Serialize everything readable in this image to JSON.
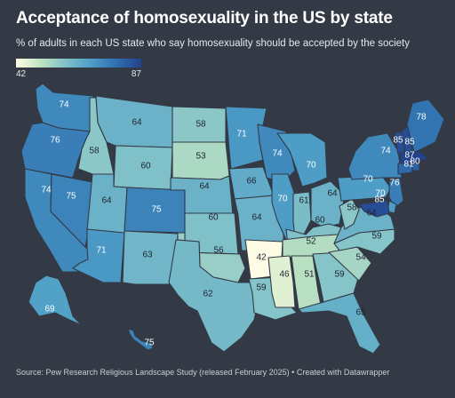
{
  "title": "Acceptance of homosexuality in the US by state",
  "subtitle": "% of adults in each US state who say homosexuality should be accepted by the society",
  "legend": {
    "min": "42",
    "max": "87"
  },
  "source": "Source: Pew Research Religious Landscape Study (released February 2025) • Created with Datawrapper",
  "colors": {
    "low": "#fefce4",
    "high": "#23428c",
    "background": "#333a46"
  },
  "states": {
    "WA": 74,
    "OR": 76,
    "CA": 74,
    "NV": 75,
    "ID": 58,
    "MT": 64,
    "WY": 60,
    "UT": 64,
    "AZ": 71,
    "CO": 75,
    "NM": 63,
    "ND": 58,
    "SD": 53,
    "NE": 64,
    "KS": 60,
    "OK": 56,
    "TX": 62,
    "MN": 71,
    "IA": 66,
    "MO": 64,
    "AR": 42,
    "LA": 59,
    "WI": 74,
    "IL": 70,
    "MI": 70,
    "IN": 61,
    "OH": 64,
    "KY": 60,
    "TN": 52,
    "MS": 46,
    "AL": 51,
    "GA": 59,
    "FL": 65,
    "SC": 54,
    "NC": 59,
    "VA": 64,
    "WV": 58,
    "PA": 70,
    "NY": 74,
    "VT": 85,
    "NH": 85,
    "ME": 78,
    "MA": 87,
    "RI": 81,
    "CT": 80,
    "NJ": 76,
    "DE": 70,
    "MD": 85,
    "AK": 69,
    "HI": 75
  }
}
